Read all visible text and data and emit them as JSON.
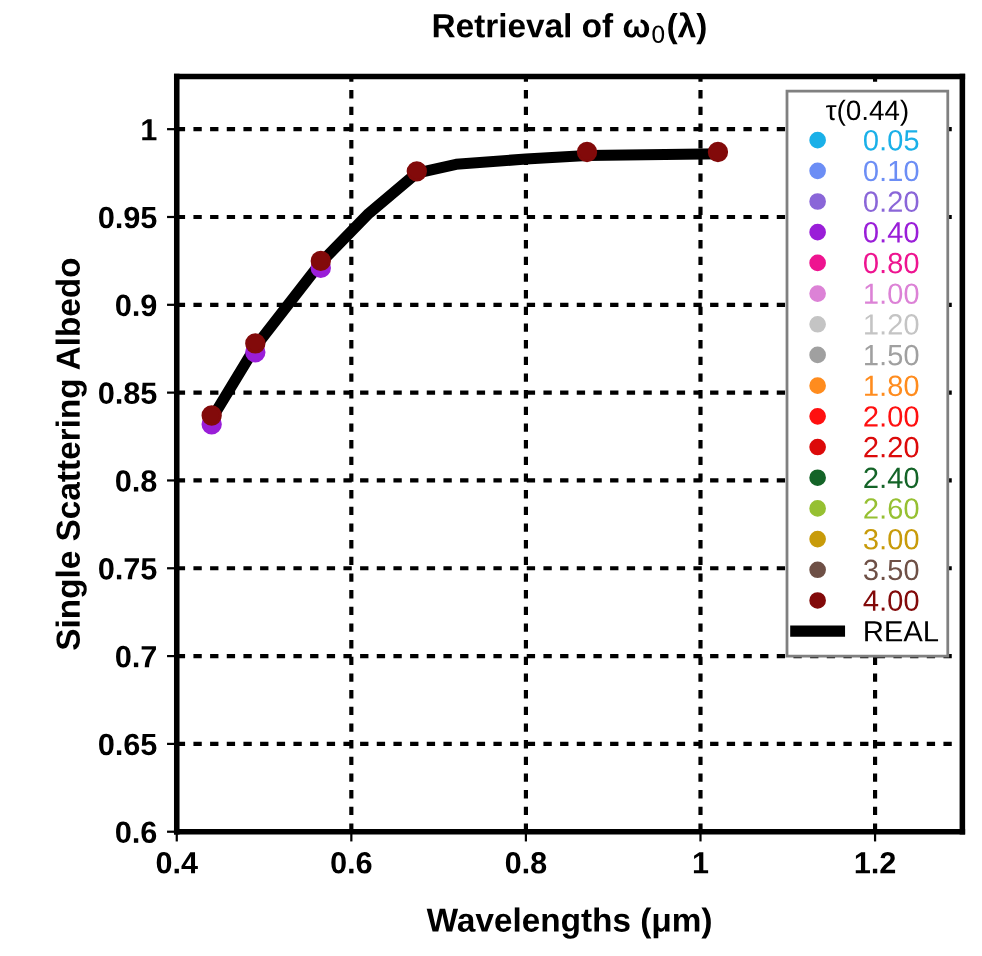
{
  "chart_data": {
    "type": "scatter",
    "title": "Retrieval of ω$_{0}$(λ)",
    "xlabel": "Wavelengths (μm)",
    "ylabel": "Single Scattering Albedo",
    "legend_title": "τ(0.44)",
    "x": [
      0.44,
      0.49,
      0.565,
      0.675,
      0.87,
      1.02
    ],
    "series": [
      {
        "name": "0.05",
        "color": "#1ab0e8",
        "values": [
          null,
          null,
          null,
          null,
          null,
          null
        ]
      },
      {
        "name": "0.10",
        "color": "#6c8ef5",
        "values": [
          null,
          null,
          null,
          null,
          null,
          null
        ]
      },
      {
        "name": "0.20",
        "color": "#8a66d8",
        "values": [
          null,
          null,
          null,
          null,
          null,
          null
        ]
      },
      {
        "name": "0.40",
        "color": "#9a1ed8",
        "values": [
          0.832,
          0.873,
          0.921,
          null,
          null,
          null
        ]
      },
      {
        "name": "0.80",
        "color": "#ee1490",
        "values": [
          null,
          null,
          null,
          null,
          null,
          null
        ]
      },
      {
        "name": "1.00",
        "color": "#dc82d6",
        "values": [
          null,
          null,
          null,
          null,
          null,
          null
        ]
      },
      {
        "name": "1.20",
        "color": "#c4c4c4",
        "values": [
          null,
          null,
          null,
          null,
          null,
          null
        ]
      },
      {
        "name": "1.50",
        "color": "#a0a0a0",
        "values": [
          null,
          null,
          null,
          null,
          null,
          null
        ]
      },
      {
        "name": "1.80",
        "color": "#ff8c1e",
        "values": [
          null,
          null,
          null,
          null,
          null,
          null
        ]
      },
      {
        "name": "2.00",
        "color": "#ff1010",
        "values": [
          null,
          null,
          null,
          null,
          null,
          null
        ]
      },
      {
        "name": "2.20",
        "color": "#dc0a0a",
        "values": [
          null,
          null,
          null,
          null,
          null,
          null
        ]
      },
      {
        "name": "2.40",
        "color": "#146428",
        "values": [
          null,
          null,
          null,
          null,
          null,
          null
        ]
      },
      {
        "name": "2.60",
        "color": "#96c032",
        "values": [
          null,
          null,
          null,
          null,
          null,
          null
        ]
      },
      {
        "name": "3.00",
        "color": "#c89b0a",
        "values": [
          null,
          null,
          null,
          null,
          null,
          null
        ]
      },
      {
        "name": "3.50",
        "color": "#6e5046",
        "values": [
          null,
          null,
          null,
          null,
          null,
          null
        ]
      },
      {
        "name": "4.00",
        "color": "#820a0a",
        "values": [
          0.837,
          0.878,
          0.925,
          0.976,
          0.987,
          0.987
        ]
      },
      {
        "name": "REAL",
        "type": "line",
        "marker": "none",
        "color": "#000000",
        "x": [
          0.44,
          0.49,
          0.565,
          0.62,
          0.675,
          0.72,
          0.8,
          0.87,
          1.02
        ],
        "values": [
          0.835,
          0.876,
          0.924,
          0.952,
          0.975,
          0.98,
          0.983,
          0.985,
          0.986
        ]
      }
    ],
    "xlim": [
      0.4,
      1.3
    ],
    "ylim": [
      0.6,
      1.03
    ],
    "xticks": [
      0.4,
      0.6,
      0.8,
      1,
      1.2
    ],
    "yticks": [
      0.6,
      0.65,
      0.7,
      0.75,
      0.8,
      0.85,
      0.9,
      0.95,
      1
    ],
    "grid": true,
    "legend": "top right",
    "marker": "circle"
  }
}
